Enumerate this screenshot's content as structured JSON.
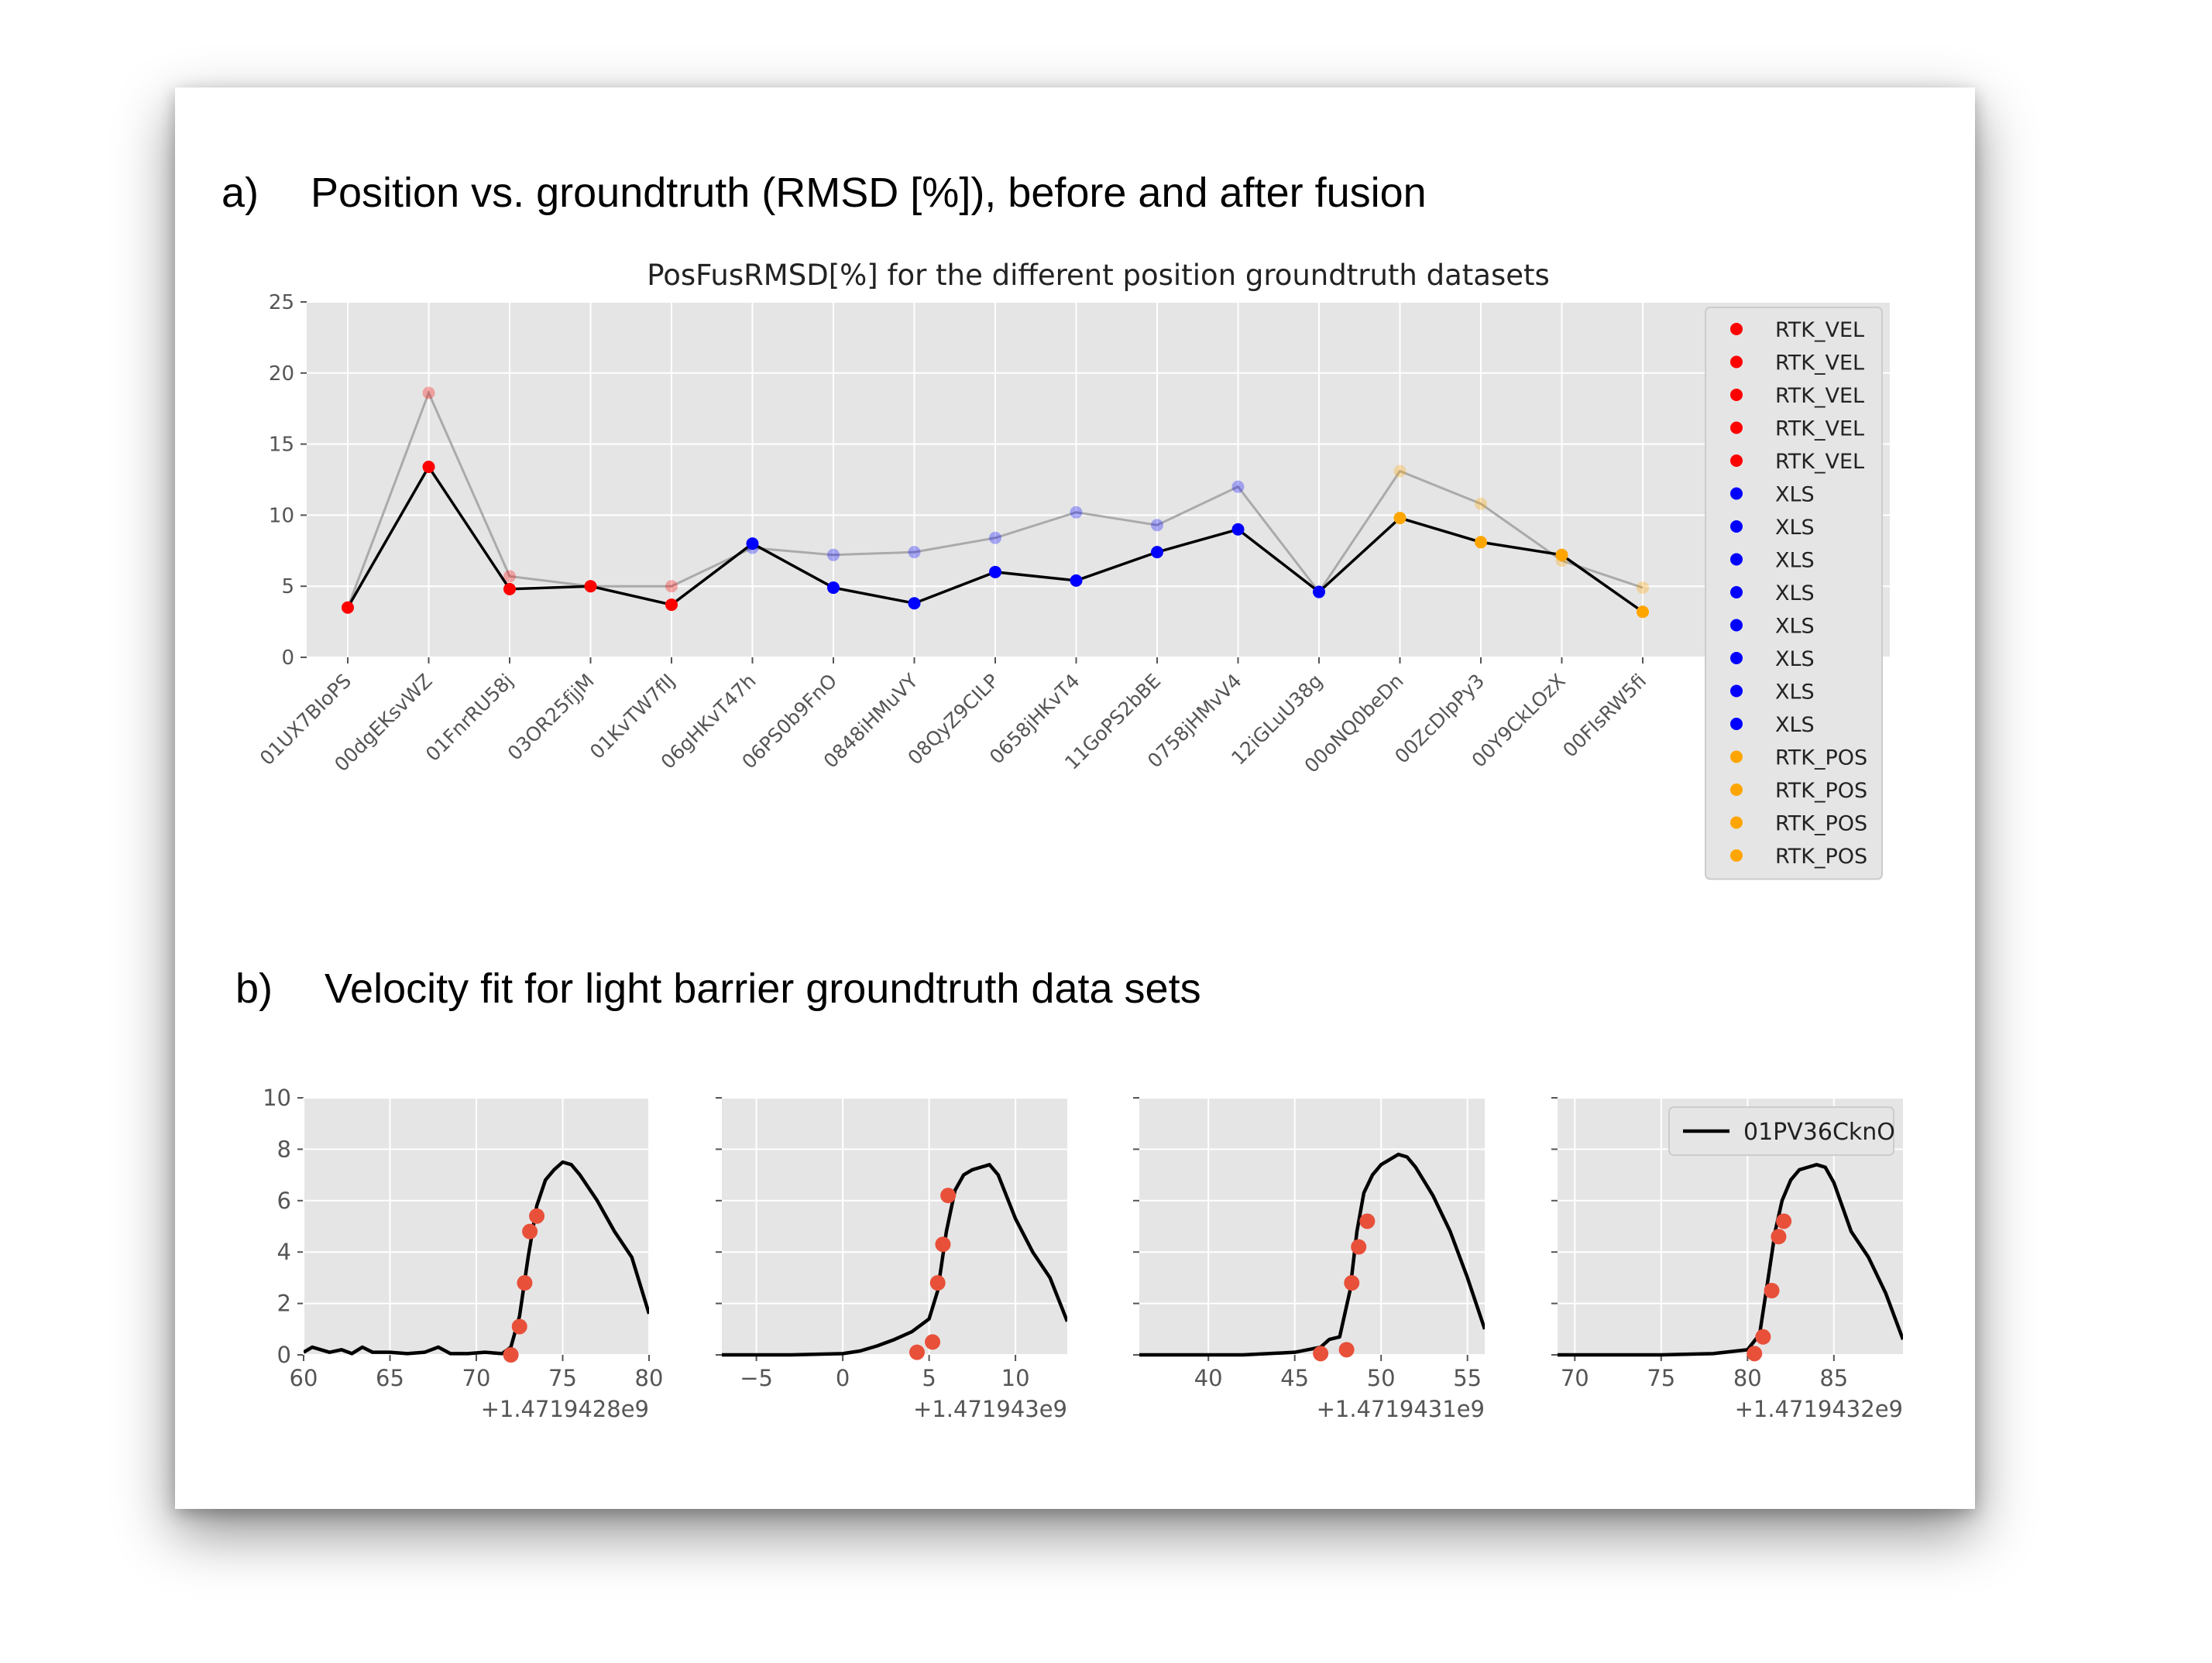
{
  "section_a": {
    "marker": "a)",
    "title": "Position vs. groundtruth (RMSD [%]), before and after fusion"
  },
  "section_b": {
    "marker": "b)",
    "title": "Velocity fit for light barrier groundtruth data sets"
  },
  "chart_data": [
    {
      "type": "line",
      "title": "PosFusRMSD[%] for the different position groundtruth datasets",
      "xlabel": "",
      "ylabel": "",
      "ylim": [
        0,
        25
      ],
      "yticks": [
        0,
        5,
        10,
        15,
        20,
        25
      ],
      "grid": true,
      "legend_placement": "right",
      "categories": [
        "01UX7BIoPS",
        "00dgEKsvWZ",
        "01FnrRU58j",
        "03OR25fjjM",
        "01KvTW7fIJ",
        "06gHKvT47h",
        "06PS0b9FnO",
        "0848iHMuVY",
        "08QyZ9CILP",
        "0658jHKvT4",
        "11GoPS2bBE",
        "0758jHMvV4",
        "12iGLuU38g",
        "00oNQ0beDn",
        "00ZcDlpPy3",
        "00Y9CkLOzX",
        "00FIsRW5fi"
      ],
      "point_groups": [
        "RTK_VEL",
        "RTK_VEL",
        "RTK_VEL",
        "RTK_VEL",
        "RTK_VEL",
        "XLS",
        "XLS",
        "XLS",
        "XLS",
        "XLS",
        "XLS",
        "XLS",
        "XLS",
        "RTK_POS",
        "RTK_POS",
        "RTK_POS",
        "RTK_POS"
      ],
      "group_colors": {
        "RTK_VEL": "#ff0000",
        "XLS": "#0000ff",
        "RTK_POS": "#ffa500"
      },
      "series": [
        {
          "values": [
            3.5,
            18.6,
            5.7,
            5.0,
            5.0,
            7.7,
            7.2,
            7.4,
            8.4,
            10.2,
            9.3,
            12.0,
            4.6,
            13.1,
            10.8,
            6.8,
            4.9
          ],
          "line_color": "#aaaaaa",
          "faded": true
        },
        {
          "values": [
            3.5,
            13.4,
            4.8,
            5.0,
            3.7,
            8.0,
            4.9,
            3.8,
            6.0,
            5.4,
            7.4,
            9.0,
            4.6,
            9.8,
            8.1,
            7.2,
            3.2
          ],
          "line_color": "#000000",
          "faded": false
        }
      ],
      "legend": [
        "RTK_VEL",
        "RTK_VEL",
        "RTK_VEL",
        "RTK_VEL",
        "RTK_VEL",
        "XLS",
        "XLS",
        "XLS",
        "XLS",
        "XLS",
        "XLS",
        "XLS",
        "XLS",
        "RTK_POS",
        "RTK_POS",
        "RTK_POS",
        "RTK_POS"
      ]
    },
    {
      "type": "line",
      "title": "",
      "xlim": [
        60,
        80
      ],
      "xticks": [
        60,
        65,
        70,
        75,
        80
      ],
      "ylim": [
        0,
        10
      ],
      "yticks": [
        0,
        2,
        4,
        6,
        8,
        10
      ],
      "offset_label": "+1.4719428e9",
      "grid": true,
      "series": [
        {
          "type": "line",
          "color": "#000000",
          "x": [
            60,
            60.5,
            61.5,
            62.2,
            62.8,
            63.4,
            64,
            65,
            66,
            67,
            67.8,
            68.5,
            69.5,
            70.5,
            71.5,
            72,
            72.5,
            73,
            73.5,
            74,
            74.5,
            75,
            75.5,
            76,
            77,
            78,
            79,
            80
          ],
          "y": [
            0.1,
            0.3,
            0.1,
            0.2,
            0.05,
            0.3,
            0.1,
            0.1,
            0.05,
            0.1,
            0.3,
            0.05,
            0.05,
            0.1,
            0.05,
            0.3,
            1.5,
            3.8,
            5.8,
            6.8,
            7.2,
            7.5,
            7.4,
            7.0,
            6.0,
            4.8,
            3.8,
            1.6
          ]
        },
        {
          "type": "scatter",
          "color": "#e8503a",
          "x": [
            72,
            72.5,
            72.8,
            73.1,
            73.5
          ],
          "y": [
            0,
            1.1,
            2.8,
            4.8,
            5.4
          ]
        }
      ]
    },
    {
      "type": "line",
      "title": "",
      "xlim": [
        -7,
        13
      ],
      "xticks": [
        -5,
        0,
        5,
        10
      ],
      "ylim": [
        0,
        10
      ],
      "yticks": [
        0,
        2,
        4,
        6,
        8,
        10
      ],
      "offset_label": "+1.471943e9",
      "grid": true,
      "series": [
        {
          "type": "line",
          "color": "#000000",
          "x": [
            -7,
            -3,
            0,
            1,
            2,
            3,
            4,
            5,
            5.5,
            6,
            6.5,
            7,
            7.5,
            8,
            8.5,
            9,
            10,
            11,
            12,
            13
          ],
          "y": [
            0,
            0,
            0.05,
            0.15,
            0.35,
            0.6,
            0.9,
            1.4,
            2.5,
            4.8,
            6.4,
            7.0,
            7.2,
            7.3,
            7.4,
            7.0,
            5.3,
            4.0,
            3.0,
            1.3
          ]
        },
        {
          "type": "scatter",
          "color": "#e8503a",
          "x": [
            4.3,
            5.2,
            5.5,
            5.8,
            6.1
          ],
          "y": [
            0.1,
            0.5,
            2.8,
            4.3,
            6.2
          ]
        }
      ]
    },
    {
      "type": "line",
      "title": "",
      "xlim": [
        36,
        56
      ],
      "xticks": [
        40,
        45,
        50,
        55
      ],
      "ylim": [
        0,
        10
      ],
      "yticks": [
        0,
        2,
        4,
        6,
        8,
        10
      ],
      "offset_label": "+1.4719431e9",
      "grid": true,
      "series": [
        {
          "type": "line",
          "color": "#000000",
          "x": [
            36,
            42,
            45,
            46.5,
            47,
            47.6,
            48.2,
            48.6,
            49,
            49.5,
            50,
            50.5,
            51,
            51.5,
            52,
            53,
            54,
            55,
            56
          ],
          "y": [
            0,
            0,
            0.1,
            0.3,
            0.6,
            0.7,
            2.5,
            4.8,
            6.3,
            7.0,
            7.4,
            7.6,
            7.8,
            7.7,
            7.3,
            6.2,
            4.8,
            3.0,
            1.0
          ]
        },
        {
          "type": "scatter",
          "color": "#e8503a",
          "x": [
            46.5,
            48,
            48.3,
            48.7,
            49.2
          ],
          "y": [
            0.05,
            0.2,
            2.8,
            4.2,
            5.2
          ]
        }
      ]
    },
    {
      "type": "line",
      "title": "",
      "xlim": [
        69,
        89
      ],
      "xticks": [
        70,
        75,
        80,
        85
      ],
      "ylim": [
        0,
        10
      ],
      "yticks": [
        0,
        2,
        4,
        6,
        8,
        10
      ],
      "offset_label": "+1.4719432e9",
      "grid": true,
      "legend": [
        "01PV36CknO"
      ],
      "series": [
        {
          "type": "line",
          "name": "01PV36CknO",
          "color": "#000000",
          "x": [
            69,
            75,
            78,
            80,
            80.7,
            81.2,
            81.6,
            82,
            82.5,
            83,
            83.5,
            84,
            84.5,
            85,
            86,
            87,
            88,
            89
          ],
          "y": [
            0,
            0,
            0.05,
            0.2,
            0.8,
            3.0,
            4.8,
            6.0,
            6.8,
            7.2,
            7.3,
            7.4,
            7.3,
            6.7,
            4.8,
            3.8,
            2.4,
            0.6
          ]
        },
        {
          "type": "scatter",
          "color": "#e8503a",
          "x": [
            80.4,
            80.9,
            81.4,
            81.8,
            82.1
          ],
          "y": [
            0.05,
            0.7,
            2.5,
            4.6,
            5.2
          ]
        }
      ]
    }
  ]
}
